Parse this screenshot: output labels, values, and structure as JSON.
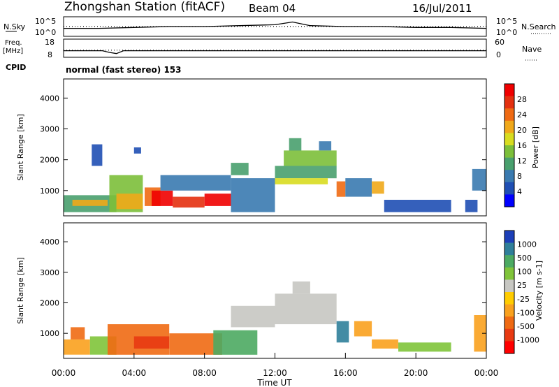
{
  "header": {
    "title": "Zhongshan Station (fitACF)",
    "beam": "Beam 04",
    "date": "16/Jul/2011"
  },
  "colors": {
    "power_scale": [
      "#0000ff",
      "#1f4fb4",
      "#3a7ab0",
      "#49a06e",
      "#7cbf3a",
      "#d8dc20",
      "#f0a81a",
      "#ef6a13",
      "#e43010",
      "#f00000"
    ],
    "velocity_scale": [
      "#1c3fb8",
      "#2f7f9a",
      "#4caa62",
      "#80c43a",
      "#c7c7c2",
      "#ffcc00",
      "#f9a11e",
      "#ef6a13",
      "#e83a12",
      "#ff0000"
    ]
  },
  "chart_data": [
    {
      "type": "line",
      "panel": "noise-panel",
      "left_labels": [
        "N.Sky"
      ],
      "right_labels": [
        "N.Search"
      ],
      "left_ticks": [
        "10^5",
        "10^0"
      ],
      "right_ticks": [
        "10^5",
        "10^0"
      ],
      "series": [
        {
          "name": "N.Sky",
          "style": "solid",
          "x": [
            0,
            2,
            4,
            6,
            8,
            10,
            12,
            13,
            14,
            16,
            18,
            20,
            22,
            24
          ],
          "y": [
            0.4,
            0.4,
            0.45,
            0.5,
            0.5,
            0.55,
            0.6,
            0.75,
            0.55,
            0.5,
            0.5,
            0.45,
            0.45,
            0.4
          ]
        },
        {
          "name": "N.Search",
          "style": "dotted",
          "x": [
            0,
            2,
            4,
            6,
            8,
            10,
            12,
            14,
            16,
            18,
            20,
            22,
            24
          ],
          "y": [
            0.5,
            0.5,
            0.5,
            0.5,
            0.5,
            0.5,
            0.5,
            0.5,
            0.5,
            0.5,
            0.5,
            0.5,
            0.5
          ]
        }
      ]
    },
    {
      "type": "line",
      "panel": "freq-panel",
      "left_labels": [
        "Freq.",
        "[MHz]",
        "CPID"
      ],
      "right_labels": [
        "Nave"
      ],
      "left_ticks": [
        "18",
        "8"
      ],
      "right_ticks": [
        "60",
        "0"
      ],
      "cpid_text": "normal (fast stereo) 153",
      "series": [
        {
          "name": "Freq.",
          "style": "solid",
          "x": [
            0,
            2.2,
            2.6,
            3.0,
            3.4,
            24
          ],
          "y": [
            11.5,
            11.5,
            10.5,
            9.8,
            11.5,
            11.5
          ]
        },
        {
          "name": "Nave",
          "style": "dotted",
          "x": [
            0,
            24
          ],
          "y": [
            23,
            23
          ]
        }
      ]
    },
    {
      "type": "heatmap",
      "panel": "power-panel",
      "ylabel": "Slant Range [km]",
      "ylim": [
        180,
        4620
      ],
      "yticks": [
        "1000",
        "2000",
        "3000",
        "4000"
      ],
      "xlim": [
        0,
        24
      ],
      "colorbar_label": "Power [dB]",
      "colorbar_ticks": [
        "4",
        "8",
        "12",
        "16",
        "20",
        "24",
        "28"
      ],
      "cells": [
        {
          "x": [
            0.0,
            3.0
          ],
          "y": [
            300,
            850
          ],
          "level": 3
        },
        {
          "x": [
            0.5,
            2.5
          ],
          "y": [
            500,
            700
          ],
          "level": 6
        },
        {
          "x": [
            2.6,
            4.5
          ],
          "y": [
            300,
            1500
          ],
          "level": 4
        },
        {
          "x": [
            3.0,
            4.5
          ],
          "y": [
            400,
            900
          ],
          "level": 6
        },
        {
          "x": [
            4.6,
            5.5
          ],
          "y": [
            500,
            1100
          ],
          "level": 7
        },
        {
          "x": [
            5.0,
            6.2
          ],
          "y": [
            500,
            1000
          ],
          "level": 9
        },
        {
          "x": [
            6.2,
            8.0
          ],
          "y": [
            450,
            800
          ],
          "level": 8
        },
        {
          "x": [
            8.0,
            9.5
          ],
          "y": [
            500,
            900
          ],
          "level": 9
        },
        {
          "x": [
            5.5,
            9.5
          ],
          "y": [
            1000,
            1500
          ],
          "level": 2
        },
        {
          "x": [
            9.5,
            10.5
          ],
          "y": [
            1500,
            1900
          ],
          "level": 3
        },
        {
          "x": [
            9.5,
            12.0
          ],
          "y": [
            300,
            1400
          ],
          "level": 2
        },
        {
          "x": [
            12.0,
            15.5
          ],
          "y": [
            1400,
            1800
          ],
          "level": 3
        },
        {
          "x": [
            12.5,
            15.5
          ],
          "y": [
            1800,
            2300
          ],
          "level": 4
        },
        {
          "x": [
            12.8,
            13.5
          ],
          "y": [
            2300,
            2700
          ],
          "level": 3
        },
        {
          "x": [
            14.5,
            15.2
          ],
          "y": [
            2300,
            2600
          ],
          "level": 2
        },
        {
          "x": [
            12.0,
            15.0
          ],
          "y": [
            1200,
            1400
          ],
          "level": 5
        },
        {
          "x": [
            15.5,
            16.0
          ],
          "y": [
            800,
            1300
          ],
          "level": 7
        },
        {
          "x": [
            16.0,
            17.5
          ],
          "y": [
            800,
            1400
          ],
          "level": 2
        },
        {
          "x": [
            17.5,
            18.2
          ],
          "y": [
            900,
            1300
          ],
          "level": 6
        },
        {
          "x": [
            18.2,
            22.0
          ],
          "y": [
            300,
            700
          ],
          "level": 1
        },
        {
          "x": [
            1.6,
            2.2
          ],
          "y": [
            1800,
            2500
          ],
          "level": 1
        },
        {
          "x": [
            4.0,
            4.4
          ],
          "y": [
            2200,
            2400
          ],
          "level": 1
        },
        {
          "x": [
            22.8,
            23.5
          ],
          "y": [
            300,
            700
          ],
          "level": 1
        },
        {
          "x": [
            23.2,
            24.0
          ],
          "y": [
            1000,
            1700
          ],
          "level": 2
        }
      ]
    },
    {
      "type": "heatmap",
      "panel": "velocity-panel",
      "ylabel": "Slant Range [km]",
      "ylim": [
        180,
        4620
      ],
      "yticks": [
        "1000",
        "2000",
        "3000",
        "4000"
      ],
      "xlim": [
        0,
        24
      ],
      "xticks": [
        "00:00",
        "04:00",
        "08:00",
        "12:00",
        "16:00",
        "20:00",
        "00:00"
      ],
      "xlabel": "Time UT",
      "colorbar_label": "Velocity [m s-1]",
      "colorbar_ticks": [
        "1000",
        "500",
        "100",
        "25",
        "-25",
        "-100",
        "-500",
        "-1000"
      ],
      "cells": [
        {
          "x": [
            0.0,
            1.5
          ],
          "y": [
            300,
            800
          ],
          "level": 6
        },
        {
          "x": [
            0.4,
            1.2
          ],
          "y": [
            800,
            1200
          ],
          "level": 7
        },
        {
          "x": [
            1.5,
            3.0
          ],
          "y": [
            300,
            900
          ],
          "level": 3
        },
        {
          "x": [
            2.5,
            6.0
          ],
          "y": [
            300,
            1300
          ],
          "level": 7
        },
        {
          "x": [
            4.0,
            6.0
          ],
          "y": [
            500,
            900
          ],
          "level": 8
        },
        {
          "x": [
            6.0,
            9.0
          ],
          "y": [
            300,
            1000
          ],
          "level": 7
        },
        {
          "x": [
            8.5,
            11.0
          ],
          "y": [
            300,
            1100
          ],
          "level": 2
        },
        {
          "x": [
            9.5,
            12.0
          ],
          "y": [
            1200,
            1900
          ],
          "level": 4
        },
        {
          "x": [
            12.0,
            15.5
          ],
          "y": [
            1300,
            2300
          ],
          "level": 4
        },
        {
          "x": [
            13.0,
            14.0
          ],
          "y": [
            2300,
            2700
          ],
          "level": 4
        },
        {
          "x": [
            15.5,
            16.2
          ],
          "y": [
            700,
            1400
          ],
          "level": 1
        },
        {
          "x": [
            16.5,
            17.5
          ],
          "y": [
            900,
            1400
          ],
          "level": 6
        },
        {
          "x": [
            17.5,
            19.0
          ],
          "y": [
            500,
            800
          ],
          "level": 6
        },
        {
          "x": [
            19.0,
            22.0
          ],
          "y": [
            400,
            700
          ],
          "level": 3
        },
        {
          "x": [
            23.3,
            24.0
          ],
          "y": [
            400,
            1600
          ],
          "level": 6
        }
      ]
    }
  ]
}
